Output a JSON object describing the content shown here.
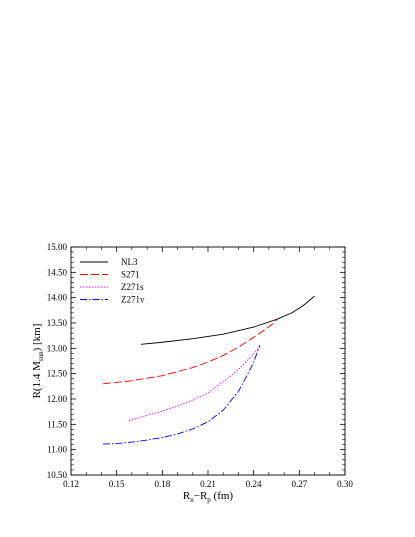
{
  "chart_data": {
    "type": "line",
    "xlabel_main": "R",
    "xlabel_sub_n": "n",
    "xlabel_dash": "−R",
    "xlabel_sub_p": "p",
    "xlabel_unit": " (fm)",
    "ylabel_pre": "R(1.4 M",
    "ylabel_sub": "sun",
    "ylabel_post": ") [km]",
    "xlim": [
      0.12,
      0.3
    ],
    "ylim": [
      10.5,
      15.0
    ],
    "xticks": [
      "0.12",
      "0.15",
      "0.18",
      "0.21",
      "0.24",
      "0.27",
      "0.30"
    ],
    "yticks": [
      "10.50",
      "11.00",
      "11.50",
      "12.00",
      "12.50",
      "13.00",
      "13.50",
      "14.00",
      "14.50",
      "15.00"
    ],
    "legend_position": "top-left",
    "series": [
      {
        "name": "NL3",
        "color": "#000000",
        "dash": "",
        "x": [
          0.166,
          0.18,
          0.2,
          0.22,
          0.24,
          0.255,
          0.265,
          0.272,
          0.28
        ],
        "y": [
          13.08,
          13.12,
          13.19,
          13.28,
          13.42,
          13.57,
          13.7,
          13.83,
          14.03
        ]
      },
      {
        "name": "S271",
        "color": "#ff0000",
        "dash": "8,3",
        "x": [
          0.141,
          0.16,
          0.18,
          0.2,
          0.21,
          0.22,
          0.23,
          0.24,
          0.248,
          0.252,
          0.256
        ],
        "y": [
          12.3,
          12.36,
          12.46,
          12.62,
          12.73,
          12.86,
          13.02,
          13.22,
          13.38,
          13.47,
          13.58
        ]
      },
      {
        "name": "Z271s",
        "color": "#ff00ff",
        "dash": "1.5,1.5",
        "x": [
          0.158,
          0.17,
          0.18,
          0.19,
          0.2,
          0.21,
          0.22,
          0.23,
          0.24,
          0.244
        ],
        "y": [
          11.57,
          11.68,
          11.76,
          11.86,
          11.98,
          12.12,
          12.34,
          12.58,
          12.89,
          13.04
        ]
      },
      {
        "name": "Z271v",
        "color": "#0000ff",
        "dash": "7,2,1.5,2",
        "x": [
          0.141,
          0.15,
          0.16,
          0.17,
          0.18,
          0.19,
          0.2,
          0.21,
          0.22,
          0.23,
          0.235,
          0.24,
          0.244
        ],
        "y": [
          11.11,
          11.12,
          11.15,
          11.19,
          11.24,
          11.31,
          11.41,
          11.55,
          11.78,
          12.15,
          12.43,
          12.72,
          13.06
        ]
      }
    ]
  }
}
